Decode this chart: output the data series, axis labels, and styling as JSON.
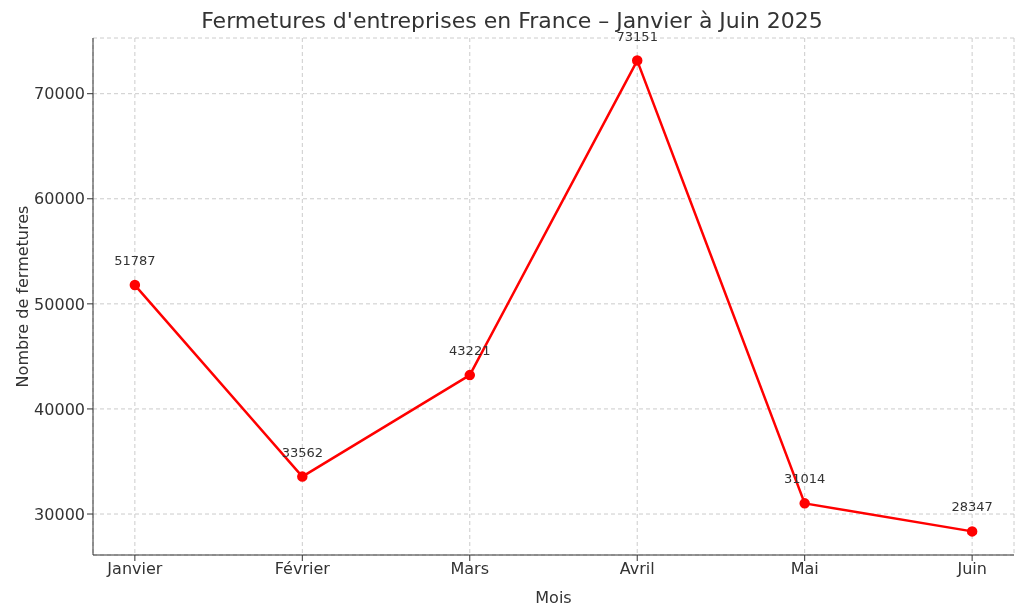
{
  "chart_data": {
    "type": "line",
    "title": "Fermetures d'entreprises en France – Janvier à Juin 2025",
    "xlabel": "Mois",
    "ylabel": "Nombre de fermetures",
    "categories": [
      "Janvier",
      "Février",
      "Mars",
      "Avril",
      "Mai",
      "Juin"
    ],
    "series": [
      {
        "color": "#ff0000",
        "values": [
          51787,
          33562,
          43221,
          73151,
          31014,
          28347
        ]
      }
    ],
    "ylim": [
      26100,
      75300
    ],
    "yticks": [
      30000,
      40000,
      50000,
      60000,
      70000
    ],
    "grid": true,
    "marker": "circle",
    "line_style": "solid",
    "data_labels": true,
    "legend": false
  }
}
